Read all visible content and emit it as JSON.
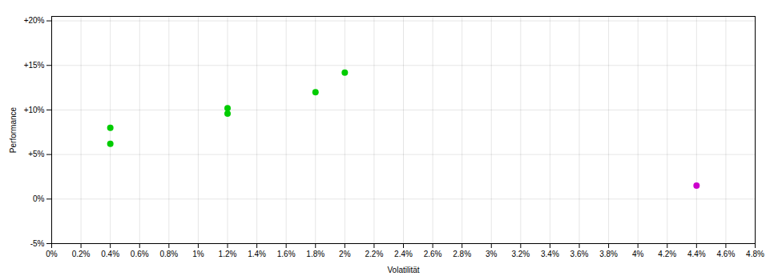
{
  "chart_data": {
    "type": "scatter",
    "xlabel": "Volatilität",
    "ylabel": "Performance",
    "xlim": [
      0.0,
      0.048
    ],
    "ylim": [
      -0.05,
      0.205
    ],
    "xticks": [
      {
        "value": 0.0,
        "label": "0%"
      },
      {
        "value": 0.002,
        "label": "0.2%"
      },
      {
        "value": 0.004,
        "label": "0.4%"
      },
      {
        "value": 0.006,
        "label": "0.6%"
      },
      {
        "value": 0.008,
        "label": "0.8%"
      },
      {
        "value": 0.01,
        "label": "1%"
      },
      {
        "value": 0.012,
        "label": "1.2%"
      },
      {
        "value": 0.014,
        "label": "1.4%"
      },
      {
        "value": 0.016,
        "label": "1.6%"
      },
      {
        "value": 0.018,
        "label": "1.8%"
      },
      {
        "value": 0.02,
        "label": "2%"
      },
      {
        "value": 0.022,
        "label": "2.2%"
      },
      {
        "value": 0.024,
        "label": "2.4%"
      },
      {
        "value": 0.026,
        "label": "2.6%"
      },
      {
        "value": 0.028,
        "label": "2.8%"
      },
      {
        "value": 0.03,
        "label": "3%"
      },
      {
        "value": 0.032,
        "label": "3.2%"
      },
      {
        "value": 0.034,
        "label": "3.4%"
      },
      {
        "value": 0.036,
        "label": "3.6%"
      },
      {
        "value": 0.038,
        "label": "3.8%"
      },
      {
        "value": 0.04,
        "label": "4%"
      },
      {
        "value": 0.042,
        "label": "4.2%"
      },
      {
        "value": 0.044,
        "label": "4.4%"
      },
      {
        "value": 0.046,
        "label": "4.6%"
      },
      {
        "value": 0.048,
        "label": "4.8%"
      }
    ],
    "yticks": [
      {
        "value": -0.05,
        "label": "-5%"
      },
      {
        "value": 0.0,
        "label": "0%"
      },
      {
        "value": 0.05,
        "label": "+5%"
      },
      {
        "value": 0.1,
        "label": "+10%"
      },
      {
        "value": 0.15,
        "label": "+15%"
      },
      {
        "value": 0.2,
        "label": "+20%"
      }
    ],
    "grid": true,
    "series": [
      {
        "color": "#00cc00",
        "marker": "circle",
        "x": [
          0.004,
          0.004,
          0.012,
          0.012,
          0.018,
          0.02
        ],
        "values": [
          0.08,
          0.062,
          0.102,
          0.096,
          0.12,
          0.142
        ]
      },
      {
        "color": "#cc00cc",
        "marker": "circle",
        "x": [
          0.044
        ],
        "values": [
          0.015
        ]
      }
    ]
  }
}
